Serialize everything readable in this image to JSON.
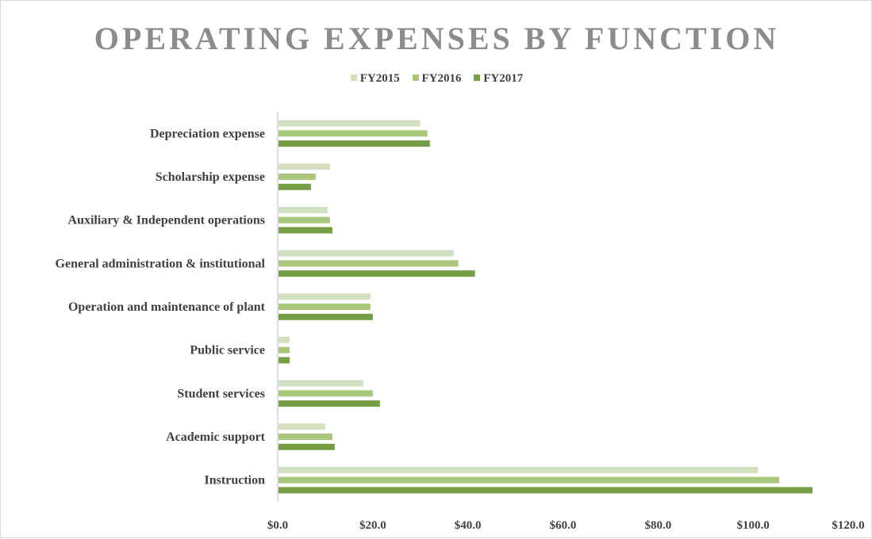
{
  "chart_data": {
    "type": "bar",
    "orientation": "horizontal",
    "title": "OPERATING EXPENSES BY FUNCTION",
    "categories": [
      "Depreciation expense",
      "Scholarship expense",
      "Auxiliary & Independent operations",
      "General administration & institutional",
      "Operation and maintenance of plant",
      "Public service",
      "Student services",
      "Academic support",
      "Instruction"
    ],
    "series": [
      {
        "name": "FY2015",
        "color": "#d3e0bf",
        "values": [
          30.0,
          11.0,
          10.5,
          37.0,
          19.5,
          2.5,
          18.0,
          10.0,
          101.0
        ]
      },
      {
        "name": "FY2016",
        "color": "#a9c77b",
        "values": [
          31.5,
          8.0,
          11.0,
          38.0,
          19.5,
          2.5,
          20.0,
          11.5,
          105.5
        ]
      },
      {
        "name": "FY2017",
        "color": "#759e44",
        "values": [
          32.0,
          7.0,
          11.5,
          41.5,
          20.0,
          2.5,
          21.5,
          12.0,
          112.5
        ]
      }
    ],
    "x_ticks": [
      "$0.0",
      "$20.0",
      "$40.0",
      "$60.0",
      "$80.0",
      "$100.0",
      "$120.0"
    ],
    "xlim": [
      0,
      120
    ],
    "legend_position": "top",
    "grid": false
  }
}
